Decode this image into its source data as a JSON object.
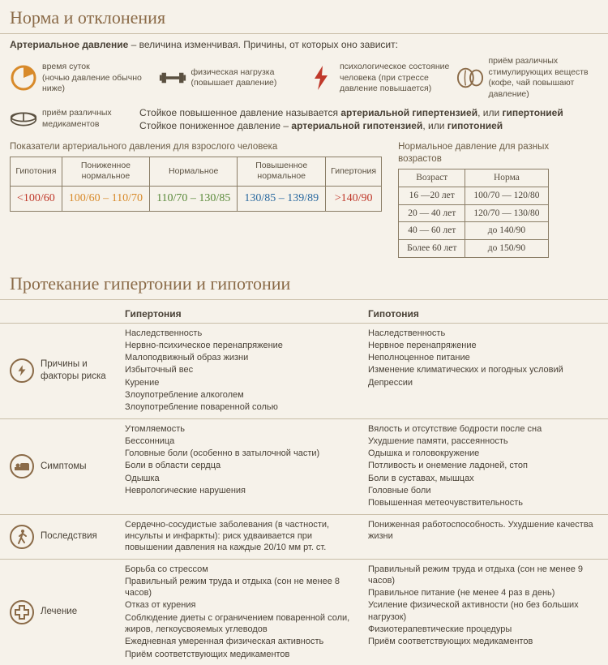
{
  "colors": {
    "bg": "#f6f2ea",
    "title": "#8a6a47",
    "text": "#494136",
    "border": "#8a7d66",
    "rule": "#c9bea8",
    "red": "#c0392b",
    "green": "#5a8a3a",
    "blue": "#2b6aa0",
    "orange": "#d88a2a"
  },
  "section1_title": "Норма и отклонения",
  "intro_pre": "Артериальное давление",
  "intro_rest": " – величина изменчивая. Причины, от которых оно зависит:",
  "factors": [
    {
      "icon": "clock",
      "text": "время суток\n(ночью давление обычно ниже)"
    },
    {
      "icon": "dumbbell",
      "text": "физическая нагрузка\n(повышает давление)"
    },
    {
      "icon": "bolt",
      "text": "психологическое состояние человека (при стрессе давление повышается)"
    },
    {
      "icon": "coffee",
      "text": "приём различных стимулирующих веществ (кофе, чай повышают давление)"
    }
  ],
  "meds_label": "приём различных\nмедикаментов",
  "med_line1_a": "Стойкое повышенное давление называется ",
  "med_line1_b": "артериальной гипертензией",
  "med_line1_c": ", или ",
  "med_line1_d": "гипертонией",
  "med_line2_a": "Стойкое пониженное давление – ",
  "med_line2_b": "артериальной гипотензией",
  "med_line2_c": ", или ",
  "med_line2_d": "гипотонией",
  "bp_caption": "Показатели артериального давления для взрослого человека",
  "age_caption": "Нормальное давление для разных возрастов",
  "bp_table": {
    "headers": [
      "Гипотония",
      "Пониженное нормальное",
      "Нормальное",
      "Повышенное нормальное",
      "Гипертония"
    ],
    "values": [
      "<100/60",
      "100/60 – 110/70",
      "110/70 – 130/85",
      "130/85 – 139/89",
      ">140/90"
    ],
    "value_colors": [
      "#c0392b",
      "#d88a2a",
      "#5a8a3a",
      "#2b6aa0",
      "#c0392b"
    ]
  },
  "age_table": {
    "headers": [
      "Возраст",
      "Норма"
    ],
    "rows": [
      [
        "16 —20 лет",
        "100/70 — 120/80"
      ],
      [
        "20 — 40 лет",
        "120/70 — 130/80"
      ],
      [
        "40 — 60 лет",
        "до 140/90"
      ],
      [
        "Более 60 лет",
        "до 150/90"
      ]
    ]
  },
  "section2_title": "Протекание гипертонии и гипотонии",
  "comp_headers": [
    "Гипертония",
    "Гипотония"
  ],
  "comp_rows": [
    {
      "icon": "bolt-circle",
      "label": "Причины и факторы риска",
      "left": [
        "Наследственность",
        "Нервно-психическое перенапряжение",
        "Малоподвижный образ жизни",
        "Избыточный вес",
        "Курение",
        "Злоупотребление алкоголем",
        "Злоупотребление поваренной солью"
      ],
      "right": [
        "Наследственность",
        "Нервное перенапряжение",
        "Неполноценное питание",
        "Изменение климатических и погодных условий",
        "Депрессии"
      ]
    },
    {
      "icon": "bed",
      "label": "Симптомы",
      "left": [
        "Утомляемость",
        "Бессонница",
        "Головные боли (особенно в затылочной части)",
        "Боли в области сердца",
        "Одышка",
        "Неврологические нарушения"
      ],
      "right": [
        "Вялость и отсутствие бодрости после сна",
        "Ухудшение памяти, рассеянность",
        "Одышка и головокружение",
        "Потливость и онемение ладоней, стоп",
        "Боли в суставах, мышцах",
        "Головные боли",
        "Повышенная метеочувствительность"
      ]
    },
    {
      "icon": "walk",
      "label": "Последствия",
      "left": [
        "Сердечно-сосудистые заболевания (в частности, инсульты и инфаркты): риск удваивается при повышении давления на каждые 20/10 мм рт. ст."
      ],
      "right": [
        "Пониженная работоспособность. Ухудшение качества жизни"
      ]
    },
    {
      "icon": "cross",
      "label": "Лечение",
      "left": [
        "Борьба со стрессом",
        "Правильный режим труда и отдыха (сон не менее 8 часов)",
        "Отказ от курения",
        "Соблюдение диеты с ограничением поваренной соли, жиров, легкоусвояемых углеводов",
        "Ежедневная умеренная физическая активность",
        "Приём соответствующих медикаментов"
      ],
      "right": [
        "Правильный режим труда и отдыха (сон не менее 9 часов)",
        "Правильное питание (не менее 4 раз в день)",
        "Усиление физической активности (но без больших нагрузок)",
        "Физиотерапевтические процедуры",
        "Приём соответствующих медикаментов"
      ]
    }
  ]
}
